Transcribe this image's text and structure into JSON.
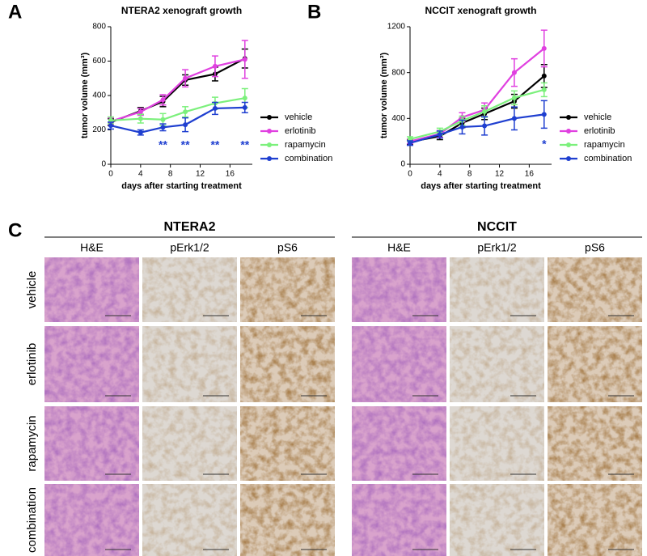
{
  "chart_data": [
    {
      "type": "line",
      "panel": "A",
      "title": "NTERA2 xenograft growth",
      "x_label": "days after starting treatment",
      "y_label": "tumor volume (mm³)",
      "x": [
        0,
        4,
        7,
        10,
        14,
        18
      ],
      "xlim": [
        0,
        19
      ],
      "xticks": [
        0,
        4,
        8,
        12,
        16
      ],
      "ylim": [
        0,
        800
      ],
      "yticks": [
        0,
        200,
        400,
        600,
        800
      ],
      "legend": "right",
      "series": [
        {
          "name": "vehicle",
          "color": "#000000",
          "values": [
            245,
            310,
            365,
            490,
            525,
            615
          ],
          "error": [
            20,
            20,
            30,
            30,
            40,
            55
          ]
        },
        {
          "name": "erlotinib",
          "color": "#e040e0",
          "values": [
            250,
            305,
            375,
            500,
            570,
            610
          ],
          "error": [
            20,
            20,
            30,
            50,
            60,
            110
          ]
        },
        {
          "name": "rapamycin",
          "color": "#7cf07c",
          "values": [
            255,
            265,
            260,
            305,
            355,
            385
          ],
          "error": [
            20,
            25,
            35,
            30,
            35,
            55
          ]
        },
        {
          "name": "combination",
          "color": "#1f3fd0",
          "values": [
            225,
            185,
            215,
            230,
            325,
            330
          ],
          "error": [
            20,
            15,
            20,
            40,
            35,
            30
          ]
        }
      ],
      "annotations": [
        {
          "text": "**",
          "x": 7,
          "y": 110,
          "color": "#1f3fd0"
        },
        {
          "text": "**",
          "x": 10,
          "y": 110,
          "color": "#1f3fd0"
        },
        {
          "text": "**",
          "x": 14,
          "y": 110,
          "color": "#1f3fd0"
        },
        {
          "text": "**",
          "x": 18,
          "y": 110,
          "color": "#1f3fd0"
        }
      ]
    },
    {
      "type": "line",
      "panel": "B",
      "title": "NCCIT xenograft growth",
      "x_label": "days after starting treatment",
      "y_label": "tumor volume (mm³)",
      "x": [
        0,
        4,
        7,
        10,
        14,
        18
      ],
      "xlim": [
        0,
        19
      ],
      "xticks": [
        0,
        4,
        8,
        12,
        16
      ],
      "ylim": [
        0,
        1200
      ],
      "yticks": [
        0,
        400,
        800,
        1200
      ],
      "legend": "right",
      "series": [
        {
          "name": "vehicle",
          "color": "#000000",
          "values": [
            195,
            245,
            360,
            440,
            550,
            770
          ],
          "error": [
            20,
            30,
            40,
            50,
            60,
            100
          ]
        },
        {
          "name": "erlotinib",
          "color": "#e040e0",
          "values": [
            200,
            265,
            410,
            475,
            800,
            1010
          ],
          "error": [
            20,
            30,
            40,
            60,
            120,
            160
          ]
        },
        {
          "name": "rapamycin",
          "color": "#7cf07c",
          "values": [
            220,
            285,
            380,
            460,
            580,
            650
          ],
          "error": [
            20,
            30,
            40,
            50,
            60,
            60
          ]
        },
        {
          "name": "combination",
          "color": "#1f3fd0",
          "values": [
            185,
            260,
            325,
            335,
            400,
            435
          ],
          "error": [
            20,
            30,
            60,
            80,
            100,
            120
          ]
        }
      ],
      "annotations": [
        {
          "text": "*",
          "x": 18,
          "y": 170,
          "color": "#1f3fd0"
        }
      ]
    }
  ],
  "panel_c": {
    "panel": "C",
    "groups": [
      {
        "title": "NTERA2",
        "columns": [
          "H&E",
          "pErk1/2",
          "pS6"
        ]
      },
      {
        "title": "NCCIT",
        "columns": [
          "H&E",
          "pErk1/2",
          "pS6"
        ]
      }
    ],
    "rows": [
      "vehicle",
      "erlotinib",
      "rapamycin",
      "combination"
    ]
  }
}
